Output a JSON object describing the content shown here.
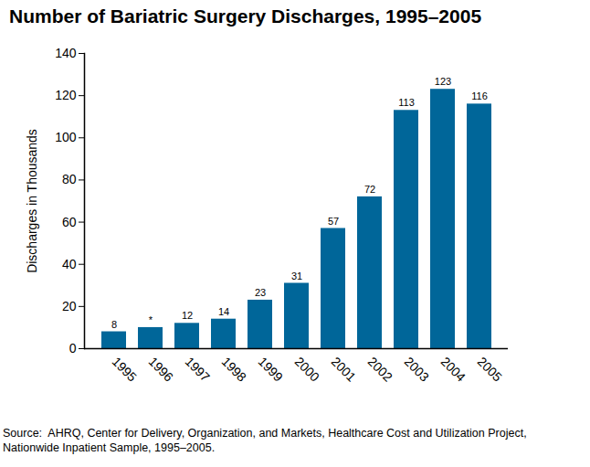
{
  "chart_data": {
    "type": "bar",
    "title": "Number of Bariatric Surgery Discharges, 1995–2005",
    "y_label": "Discharges in Thousands",
    "categories": [
      "1995",
      "1996",
      "1997",
      "1998",
      "1999",
      "2000",
      "2001",
      "2002",
      "2003",
      "2004",
      "2005"
    ],
    "values": [
      8,
      10,
      12,
      14,
      23,
      31,
      57,
      72,
      113,
      123,
      116
    ],
    "value_labels": [
      "8",
      "*",
      "12",
      "14",
      "23",
      "31",
      "57",
      "72",
      "113",
      "123",
      "116"
    ],
    "data_labels": true,
    "color": "#006699",
    "ylim": [
      0,
      140
    ],
    "yticks": [
      0,
      20,
      40,
      60,
      80,
      100,
      120,
      140
    ],
    "grid": false,
    "source": "Source:  AHRQ, Center for Delivery, Organization, and Markets, Healthcare Cost and Utilization Project, Nationwide Inpatient Sample, 1995–2005."
  }
}
